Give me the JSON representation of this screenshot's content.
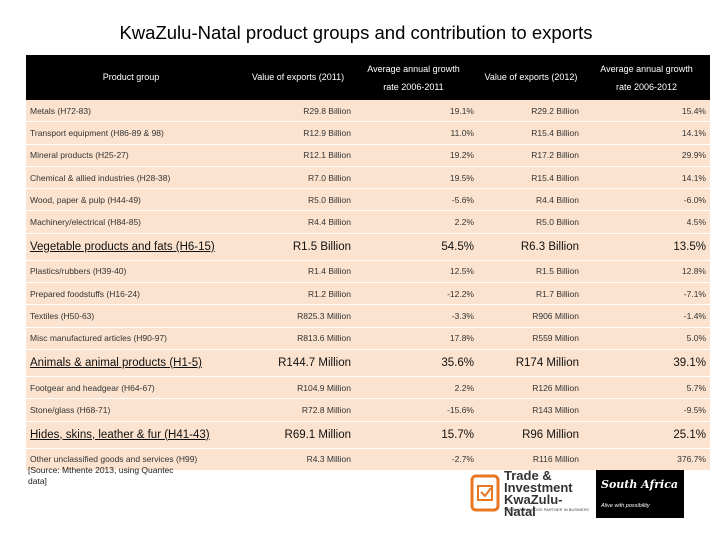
{
  "title": "KwaZulu-Natal product groups and contribution to exports",
  "header": {
    "col0": "Product group",
    "col1": "Value of exports (2011)",
    "col2_line1": "Average annual growth",
    "col2_line2": "rate 2006-2011",
    "col3": "Value of exports (2012)",
    "col4_line1": "Average annual growth",
    "col4_line2": "rate 2006-2012"
  },
  "rows": [
    {
      "group": "Metals (H72-83)",
      "v2011": "R29.8 Billion",
      "g2011": "19.1%",
      "v2012": "R29.2 Billion",
      "g2012": "15.4%"
    },
    {
      "group": "Transport equipment (H86-89 & 98)",
      "v2011": "R12.9 Billion",
      "g2011": "11.0%",
      "v2012": "R15.4 Billion",
      "g2012": "14.1%"
    },
    {
      "group": "Mineral products (H25-27)",
      "v2011": "R12.1 Billion",
      "g2011": "19.2%",
      "v2012": "R17.2 Billion",
      "g2012": "29.9%"
    },
    {
      "group": "Chemical & allied industries (H28-38)",
      "v2011": "R7.0 Billion",
      "g2011": "19.5%",
      "v2012": "R15.4 Billion",
      "g2012": "14.1%"
    },
    {
      "group": "Wood, paper & pulp (H44-49)",
      "v2011": "R5.0 Billion",
      "g2011": "-5.6%",
      "v2012": "R4.4 Billion",
      "g2012": "-6.0%"
    },
    {
      "group": "Machinery/electrical (H84-85)",
      "v2011": "R4.4 Billion",
      "g2011": "2.2%",
      "v2012": "R5.0 Billion",
      "g2012": "4.5%"
    },
    {
      "group": "Vegetable products and fats (H6-15)",
      "v2011": "R1.5 Billion",
      "g2011": "54.5%",
      "v2012": "R6.3 Billion",
      "g2012": "13.5%",
      "big": true
    },
    {
      "group": "Plastics/rubbers (H39-40)",
      "v2011": "R1.4 Billion",
      "g2011": "12.5%",
      "v2012": "R1.5 Billion",
      "g2012": "12.8%"
    },
    {
      "group": "Prepared foodstuffs (H16-24)",
      "v2011": "R1.2 Billion",
      "g2011": "-12.2%",
      "v2012": "R1.7 Billion",
      "g2012": "-7.1%"
    },
    {
      "group": "Textiles (H50-63)",
      "v2011": "R825.3 Million",
      "g2011": "-3.3%",
      "v2012": "R906 Million",
      "g2012": "-1.4%"
    },
    {
      "group": "Misc manufactured articles (H90-97)",
      "v2011": "R813.6 Million",
      "g2011": "17.8%",
      "v2012": "R559 Million",
      "g2012": "5.0%"
    },
    {
      "group": "Animals & animal products (H1-5)",
      "v2011": "R144.7 Million",
      "g2011": "35.6%",
      "v2012": "R174 Million",
      "g2012": "39.1%",
      "big": true
    },
    {
      "group": "Footgear and headgear (H64-67)",
      "v2011": "R104.9 Million",
      "g2011": "2.2%",
      "v2012": "R126 Million",
      "g2012": "5.7%"
    },
    {
      "group": "Stone/glass (H68-71)",
      "v2011": "R72.8 Million",
      "g2011": "-15.6%",
      "v2012": "R143 Million",
      "g2012": "-9.5%"
    },
    {
      "group": "Hides, skins, leather & fur (H41-43)",
      "v2011": "R69.1 Million",
      "g2011": "15.7%",
      "v2012": "R96 Million",
      "g2012": "25.1%",
      "big": true
    },
    {
      "group": "Other unclassified goods and services (H99)",
      "v2011": "R4.3 Million",
      "g2011": "-2.7%",
      "v2012": "R116 Million",
      "g2012": "376.7%"
    }
  ],
  "source_line1": "[Source: Mthente 2013, using Quantec",
  "source_line2": "data]",
  "logo_tik": {
    "line1": "Trade &",
    "line2": "Investment",
    "line3": "KwaZulu-Natal",
    "tagline": "YOUR KNOWLEDGE PARTNER IN BUSINESS"
  },
  "logo_sa": {
    "name": "South Africa",
    "tagline": "Alive with possibility"
  },
  "colors": {
    "header_bg": "#000000",
    "row_bg": "#fbe3cf",
    "logo_orange": "#e87722"
  }
}
